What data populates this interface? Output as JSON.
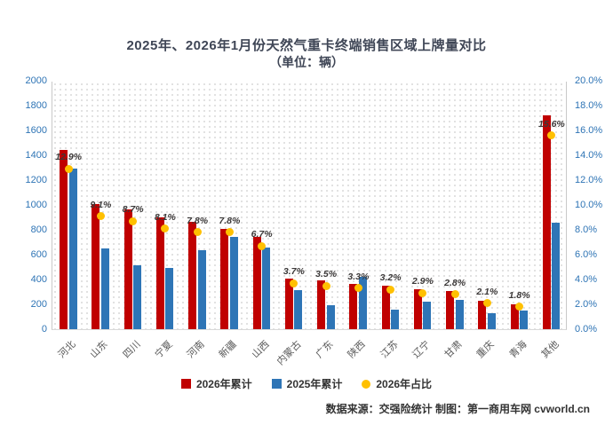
{
  "title": "2025年、2026年1月份天然气重卡终端销售区域上牌量对比",
  "subtitle": "（单位：辆）",
  "footer": "数据来源：交强险统计 制图：第一商用车网 cvworld.cn",
  "colors": {
    "red": "#c00000",
    "blue": "#2e75b6",
    "yellow": "#ffc000"
  },
  "legend": {
    "items": [
      {
        "label": "2026年累计",
        "shape": "square",
        "color": "#c00000"
      },
      {
        "label": "2025年累计",
        "shape": "square",
        "color": "#2e75b6"
      },
      {
        "label": "2026年占比",
        "shape": "circle",
        "color": "#ffc000"
      }
    ]
  },
  "chart_data": {
    "type": "bar",
    "title": "2025年、2026年1月份天然气重卡终端销售区域上牌量对比（单位：辆）",
    "categories": [
      "河北",
      "山东",
      "四川",
      "宁夏",
      "河南",
      "新疆",
      "山西",
      "内蒙古",
      "广东",
      "陕西",
      "江苏",
      "辽宁",
      "甘肃",
      "重庆",
      "青海",
      "其他"
    ],
    "series": [
      {
        "name": "2026年累计",
        "type": "bar",
        "color": "#c00000",
        "values": [
          1440,
          1010,
          965,
          900,
          865,
          810,
          745,
          410,
          390,
          365,
          350,
          320,
          310,
          230,
          200,
          1720
        ]
      },
      {
        "name": "2025年累计",
        "type": "bar",
        "color": "#2e75b6",
        "values": [
          1290,
          650,
          515,
          490,
          635,
          745,
          655,
          315,
          190,
          420,
          160,
          220,
          235,
          130,
          150,
          860
        ]
      },
      {
        "name": "2026年占比",
        "type": "point",
        "color": "#ffc000",
        "axis": "right",
        "values": [
          12.9,
          9.1,
          8.7,
          8.1,
          7.8,
          7.8,
          6.7,
          3.7,
          3.5,
          3.3,
          3.2,
          2.9,
          2.8,
          2.1,
          1.8,
          15.6
        ],
        "labels": [
          "12.9%",
          "9.1%",
          "8.7%",
          "8.1%",
          "7.8%",
          "7.8%",
          "6.7%",
          "3.7%",
          "3.5%",
          "3.3%",
          "3.2%",
          "2.9%",
          "2.8%",
          "2.1%",
          "1.8%",
          "15.6%"
        ]
      }
    ],
    "y_left": {
      "min": 0,
      "max": 2000,
      "step": 200,
      "ticks": [
        "0",
        "200",
        "400",
        "600",
        "800",
        "1000",
        "1200",
        "1400",
        "1600",
        "1800",
        "2000"
      ]
    },
    "y_right": {
      "min": 0,
      "max": 20,
      "step": 2,
      "ticks": [
        "0.0%",
        "2.0%",
        "4.0%",
        "6.0%",
        "8.0%",
        "10.0%",
        "12.0%",
        "14.0%",
        "16.0%",
        "18.0%",
        "20.0%"
      ]
    },
    "grid": false,
    "legend_position": "bottom"
  }
}
